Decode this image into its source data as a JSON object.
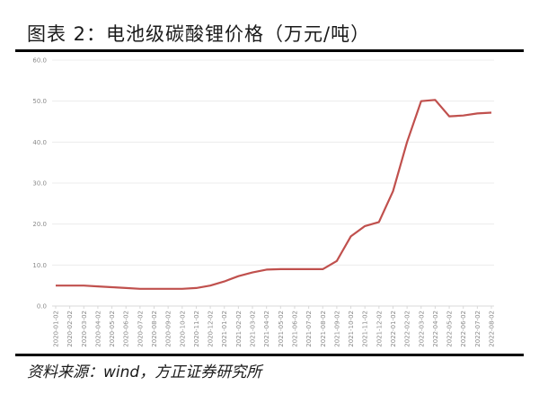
{
  "figure": {
    "title": "图表 2：电池级碳酸锂价格（万元/吨）",
    "source": "资料来源：wind，方正证券研究所"
  },
  "colors": {
    "line": "#c0504d",
    "grid": "#ececec",
    "tick_text": "#8a8a8a",
    "rule": "#000000"
  },
  "chart_data": {
    "type": "line",
    "title": "电池级碳酸锂价格（万元/吨）",
    "xlabel": "",
    "ylabel": "",
    "ylim": [
      0,
      60
    ],
    "yticks": [
      "0.0",
      "10.0",
      "20.0",
      "30.0",
      "40.0",
      "50.0",
      "60.0"
    ],
    "grid": true,
    "legend": null,
    "categories": [
      "2020-01-02",
      "2020-02-02",
      "2020-03-02",
      "2020-04-02",
      "2020-05-02",
      "2020-06-02",
      "2020-07-02",
      "2020-08-02",
      "2020-09-02",
      "2020-10-02",
      "2020-11-02",
      "2020-12-02",
      "2021-01-02",
      "2021-02-02",
      "2021-03-02",
      "2021-04-02",
      "2021-05-02",
      "2021-06-02",
      "2021-07-02",
      "2021-08-02",
      "2021-09-02",
      "2021-10-02",
      "2021-11-02",
      "2021-12-02",
      "2022-01-02",
      "2022-02-02",
      "2022-03-02",
      "2022-04-02",
      "2022-05-02",
      "2022-06-02",
      "2022-07-02",
      "2022-08-02"
    ],
    "series": [
      {
        "name": "电池级碳酸锂价格",
        "values": [
          5.0,
          5.0,
          5.0,
          4.8,
          4.6,
          4.4,
          4.2,
          4.2,
          4.2,
          4.2,
          4.4,
          5.0,
          6.0,
          7.3,
          8.2,
          8.9,
          9.0,
          9.0,
          9.0,
          9.0,
          11.0,
          17.0,
          19.5,
          20.5,
          28.0,
          40.0,
          50.0,
          50.3,
          46.3,
          46.5,
          47.0,
          47.2
        ]
      }
    ]
  }
}
